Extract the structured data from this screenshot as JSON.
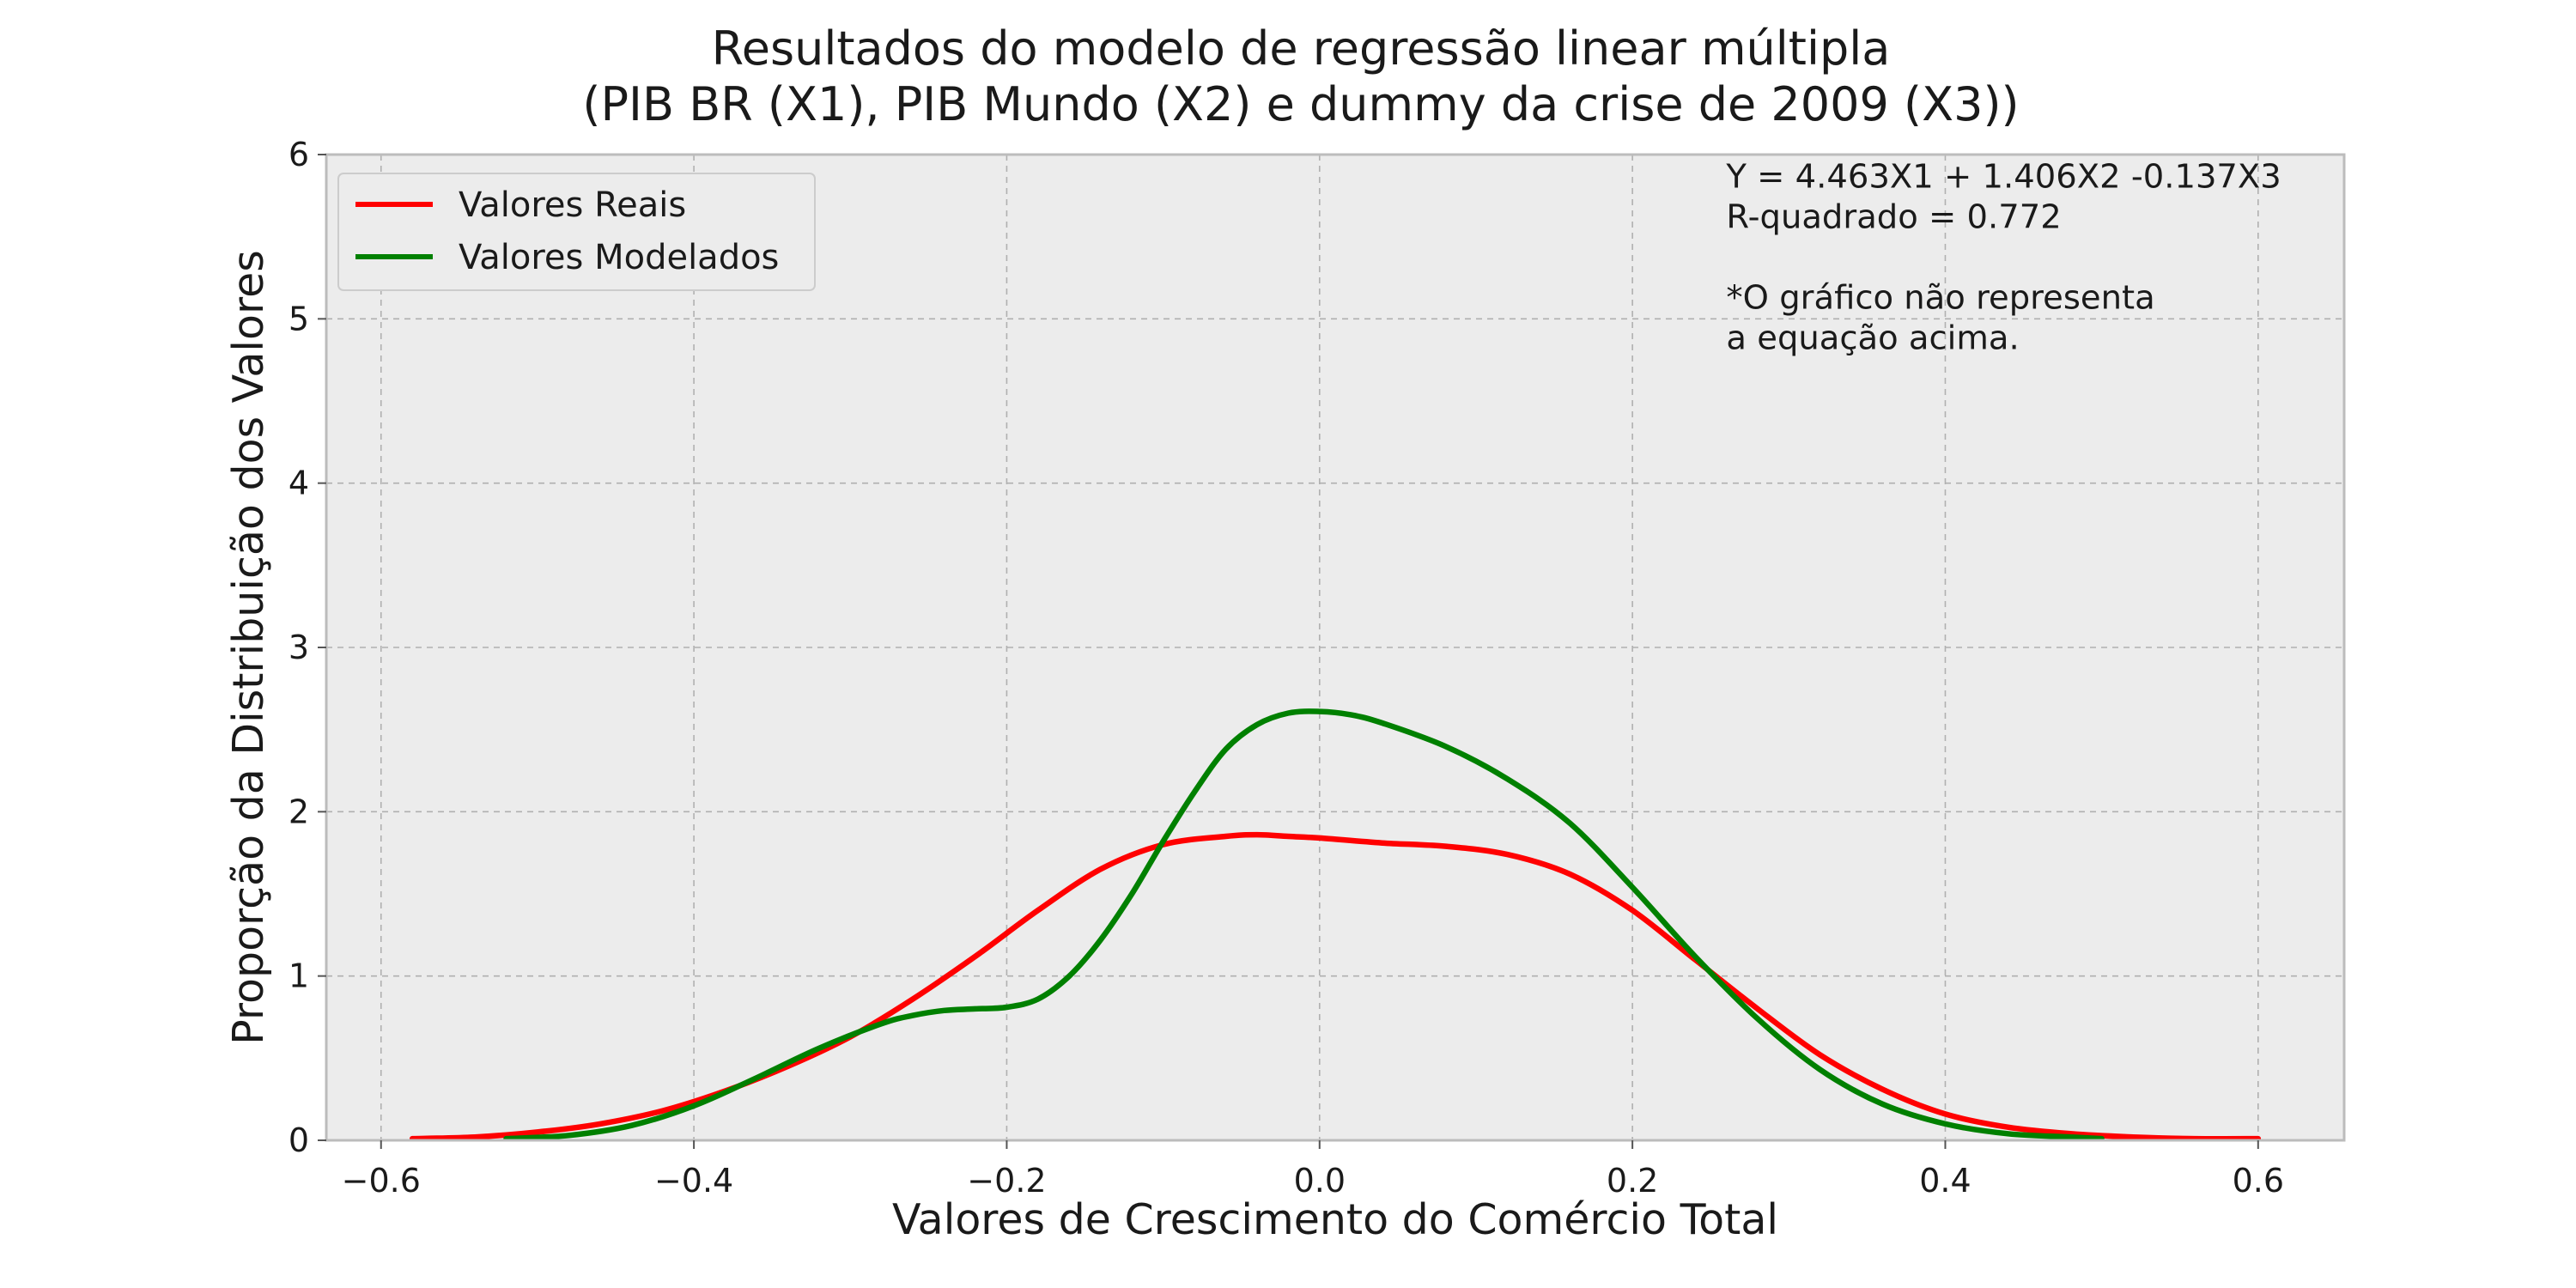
{
  "chart_data": {
    "type": "line",
    "title_lines": [
      "Resultados do modelo de regressão linear múltipla",
      "(PIB BR (X1), PIB Mundo (X2) e dummy da crise de 2009 (X3))"
    ],
    "xlabel": "Valores de Crescimento do Comércio Total",
    "ylabel": "Proporção da Distribuição dos Valores",
    "xlim": [
      -0.635,
      0.655
    ],
    "ylim": [
      0,
      6
    ],
    "x_ticks": [
      -0.6,
      -0.4,
      -0.2,
      0.0,
      0.2,
      0.4,
      0.6
    ],
    "x_tick_labels": [
      "−0.6",
      "−0.4",
      "−0.2",
      "0.0",
      "0.2",
      "0.4",
      "0.6"
    ],
    "y_ticks": [
      0,
      1,
      2,
      3,
      4,
      5,
      6
    ],
    "y_tick_labels": [
      "0",
      "1",
      "2",
      "3",
      "4",
      "5",
      "6"
    ],
    "grid": true,
    "legend_position": "top-left",
    "annotation_lines": [
      "Y = 4.463X1 + 1.406X2 -0.137X3",
      "R-quadrado = 0.772",
      "",
      "*O gráfico não representa",
      "a equação acima."
    ],
    "annotation_anchor": {
      "x": 0.26,
      "y": 5.8
    },
    "colors": {
      "background": "#ffffff",
      "plot_background": "#ececec",
      "grid": "#b0b0b0",
      "spine": "#bcbcbc"
    },
    "series": [
      {
        "name": "Valores Reais",
        "color": "#ff0000",
        "x": [
          -0.58,
          -0.54,
          -0.5,
          -0.46,
          -0.42,
          -0.38,
          -0.34,
          -0.3,
          -0.26,
          -0.22,
          -0.18,
          -0.14,
          -0.1,
          -0.06,
          -0.04,
          -0.02,
          0.0,
          0.04,
          0.08,
          0.12,
          0.16,
          0.2,
          0.24,
          0.28,
          0.32,
          0.36,
          0.4,
          0.44,
          0.48,
          0.52,
          0.56,
          0.6
        ],
        "y": [
          0.01,
          0.02,
          0.05,
          0.1,
          0.18,
          0.3,
          0.45,
          0.63,
          0.86,
          1.12,
          1.4,
          1.65,
          1.8,
          1.85,
          1.86,
          1.85,
          1.84,
          1.81,
          1.79,
          1.74,
          1.62,
          1.4,
          1.1,
          0.8,
          0.52,
          0.31,
          0.16,
          0.08,
          0.04,
          0.02,
          0.01,
          0.01
        ]
      },
      {
        "name": "Valores Modelados",
        "color": "#008000",
        "x": [
          -0.52,
          -0.48,
          -0.44,
          -0.4,
          -0.36,
          -0.32,
          -0.28,
          -0.26,
          -0.24,
          -0.22,
          -0.2,
          -0.18,
          -0.16,
          -0.14,
          -0.12,
          -0.1,
          -0.08,
          -0.06,
          -0.04,
          -0.02,
          0.0,
          0.02,
          0.04,
          0.08,
          0.12,
          0.16,
          0.2,
          0.24,
          0.28,
          0.32,
          0.36,
          0.4,
          0.44,
          0.48,
          0.5
        ],
        "y": [
          0.01,
          0.03,
          0.09,
          0.21,
          0.38,
          0.56,
          0.71,
          0.76,
          0.79,
          0.8,
          0.81,
          0.86,
          1.0,
          1.22,
          1.5,
          1.82,
          2.12,
          2.38,
          2.53,
          2.6,
          2.61,
          2.59,
          2.54,
          2.4,
          2.2,
          1.93,
          1.54,
          1.12,
          0.74,
          0.43,
          0.22,
          0.1,
          0.04,
          0.02,
          0.01
        ]
      }
    ]
  }
}
